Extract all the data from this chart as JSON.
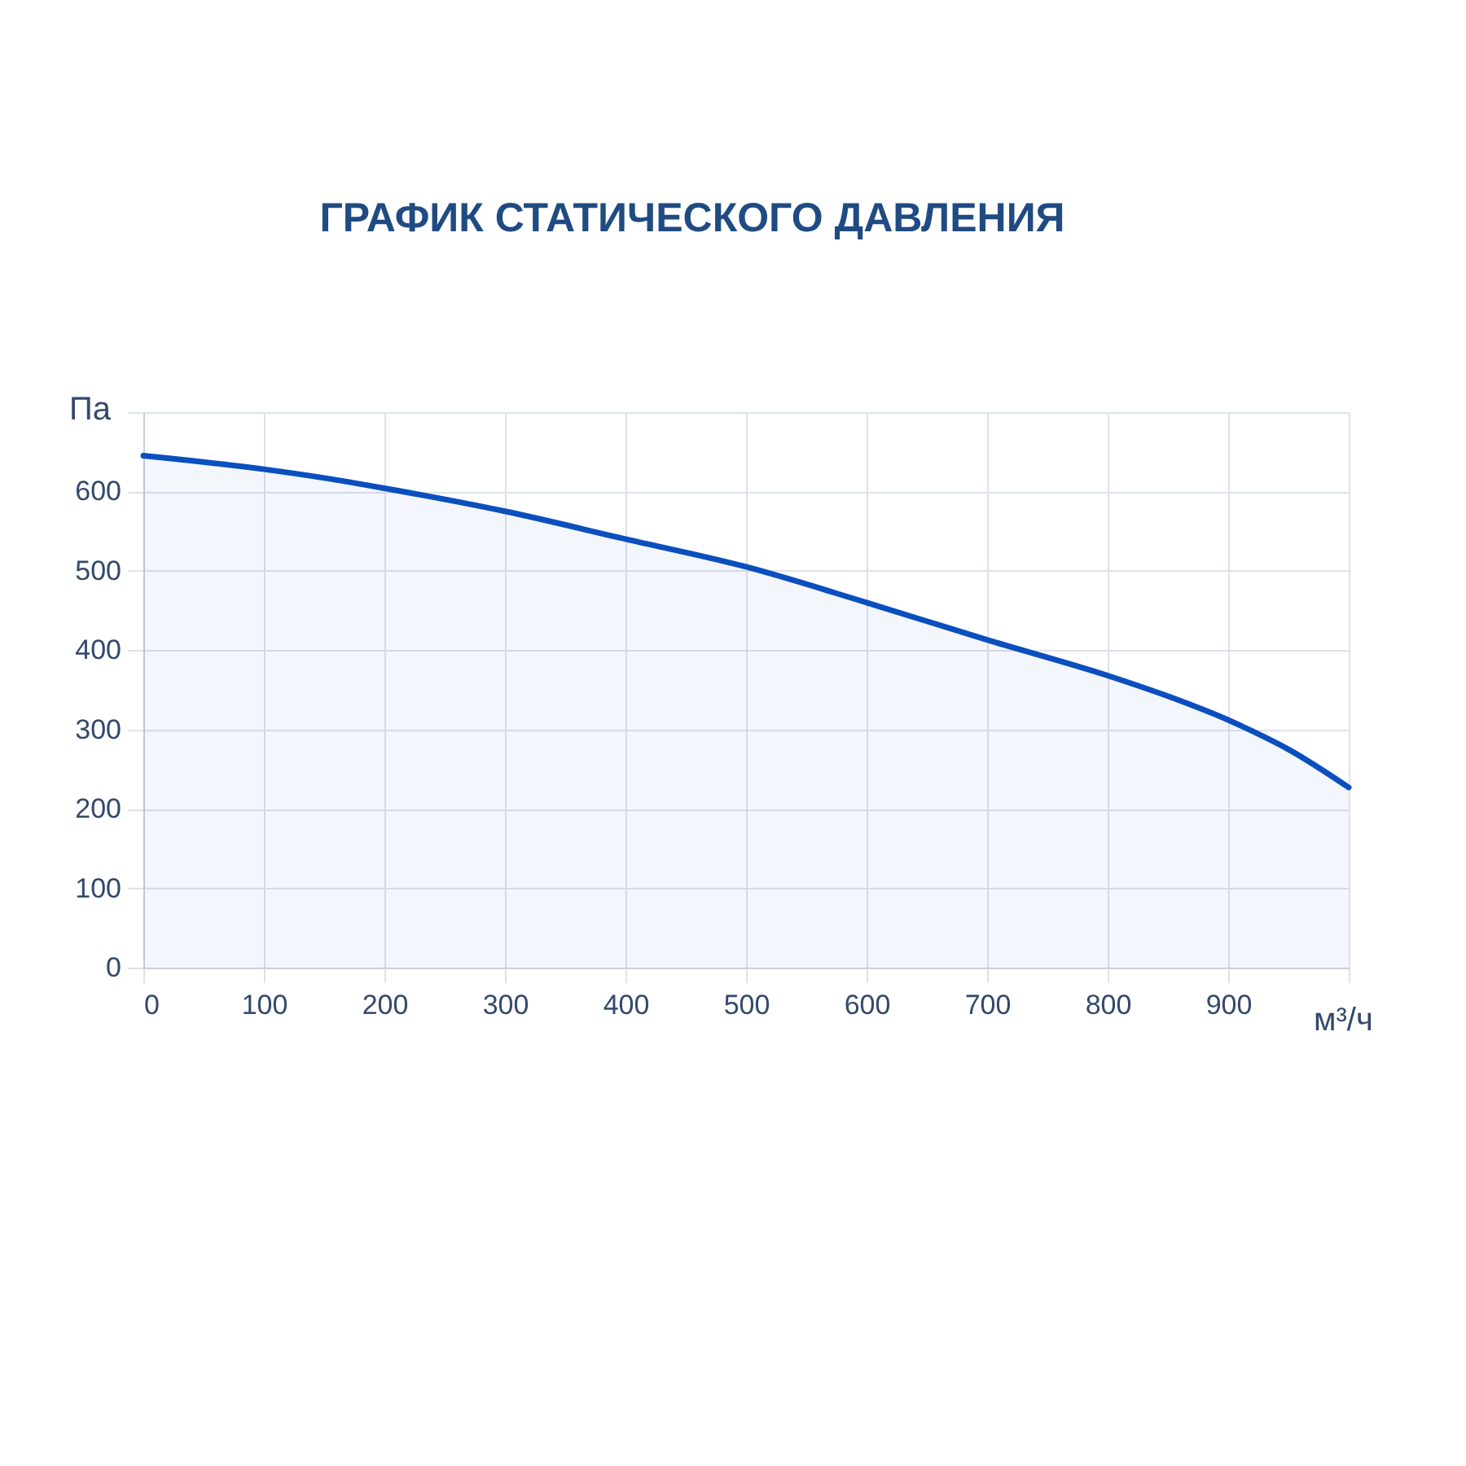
{
  "chart_data": {
    "type": "area",
    "title": "ГРАФИК СТАТИЧЕСКОГО ДАВЛЕНИЯ",
    "xlabel": "м³/ч",
    "ylabel": "Па",
    "x": [
      0,
      100,
      150,
      200,
      300,
      400,
      500,
      600,
      700,
      800,
      850,
      900,
      920,
      950,
      1000
    ],
    "series": [
      {
        "color": "#0b4fbf",
        "values": [
          645,
          628,
          617,
          604,
          575,
          540,
          505,
          460,
          413,
          368,
          342,
          312,
          298,
          275,
          227
        ]
      }
    ],
    "xlim": [
      0,
      1000
    ],
    "xticks": [
      0,
      100,
      200,
      300,
      400,
      500,
      600,
      700,
      800,
      900,
      {
        "value": 1000,
        "label": null
      }
    ],
    "ylim": [
      0,
      700
    ],
    "yticks": [
      0,
      100,
      200,
      300,
      400,
      500,
      600,
      {
        "value": 700,
        "label": null
      }
    ],
    "grid": true
  }
}
